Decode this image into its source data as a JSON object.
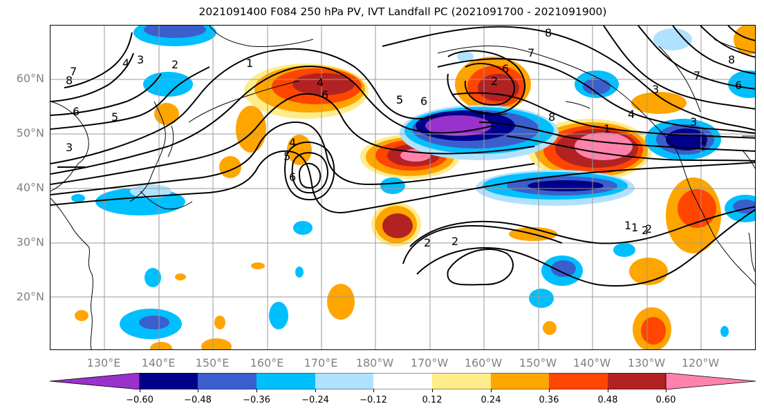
{
  "title": "2021091400 F084 250 hPa PV, IVT Landfall PC (2021091700 - 2021091900)",
  "map": {
    "lat_labels": [
      "60°N",
      "50°N",
      "40°N",
      "30°N",
      "20°N"
    ],
    "lon_labels": [
      "130°E",
      "140°E",
      "150°E",
      "160°E",
      "170°E",
      "180°W",
      "170°W",
      "160°W",
      "150°W",
      "140°W",
      "130°W",
      "120°W"
    ],
    "contour_labels": [
      "8",
      "7",
      "6",
      "5",
      "4",
      "3",
      "2",
      "1",
      "2",
      "1",
      "2",
      "3",
      "4",
      "5",
      "6",
      "4",
      "5",
      "6",
      "6",
      "7",
      "8",
      "8",
      "2",
      "3",
      "4",
      "3",
      "2",
      "1",
      "5",
      "6",
      "8",
      "7",
      "6",
      "2",
      "1",
      "2"
    ],
    "colors": {
      "neg_060": "#9932CC",
      "neg_048": "#00008B",
      "neg_036": "#3A5FCD",
      "neg_024": "#00BFFF",
      "neg_012": "#B0E2FF",
      "zero": "#FFFFFF",
      "pos_012": "#FFEC8B",
      "pos_024": "#FFA500",
      "pos_036": "#FF4500",
      "pos_048": "#B22222",
      "pos_060": "#FF82AB"
    }
  },
  "colorbar": {
    "ticks": [
      "−0.60",
      "−0.48",
      "−0.36",
      "−0.24",
      "−0.12",
      "0.12",
      "0.24",
      "0.36",
      "0.48",
      "0.60"
    ],
    "bins": [
      "#9932CC",
      "#00008B",
      "#3A5FCD",
      "#00BFFF",
      "#B0E2FF",
      "#FFFFFF",
      "#FFEC8B",
      "#FFA500",
      "#FF4500",
      "#B22222",
      "#FF82AB"
    ]
  }
}
